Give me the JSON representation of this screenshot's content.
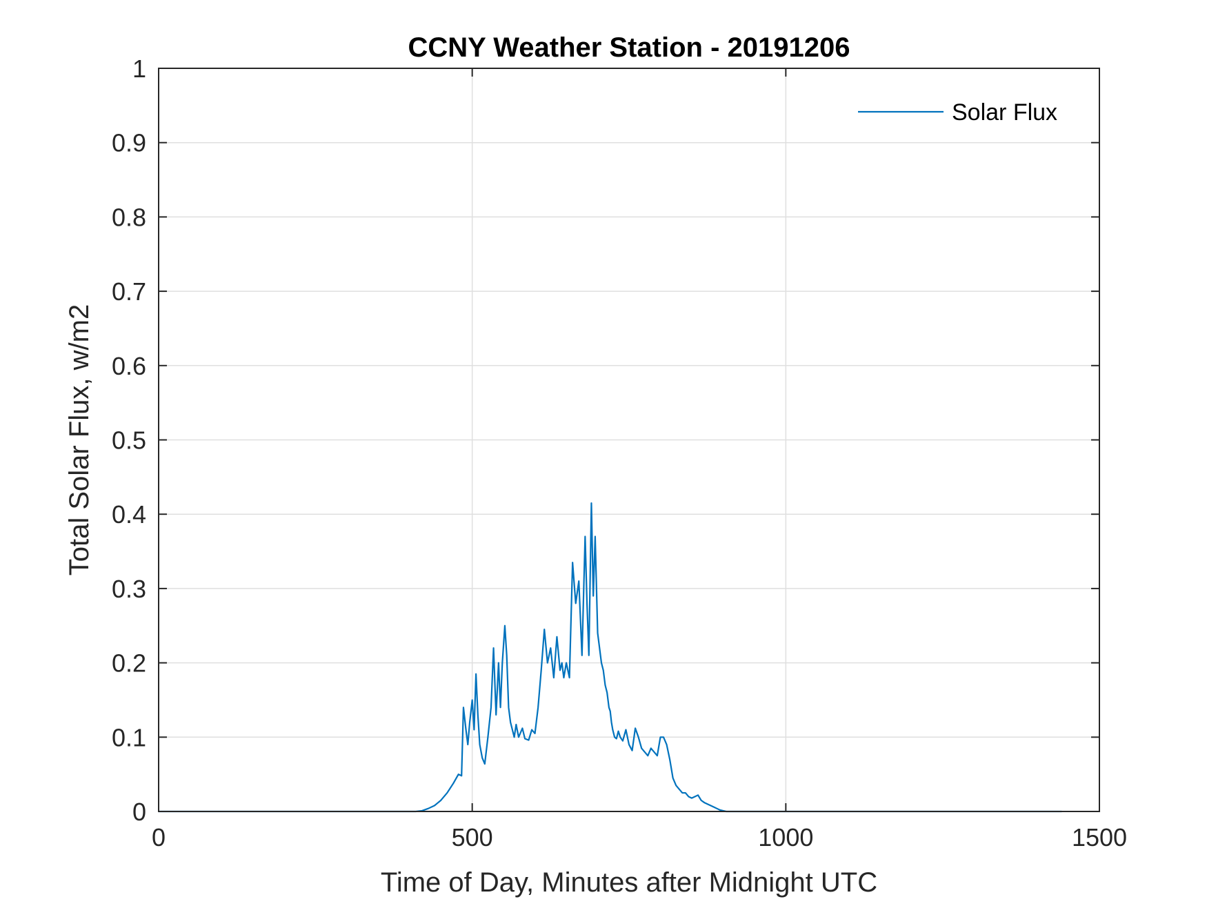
{
  "chart_data": {
    "type": "line",
    "title": "CCNY Weather Station - 20191206",
    "xlabel": "Time of Day, Minutes after Midnight UTC",
    "ylabel": "Total Solar Flux, w/m2",
    "xlim": [
      0,
      1500
    ],
    "ylim": [
      0,
      1
    ],
    "xticks": [
      0,
      500,
      1000,
      1500
    ],
    "xtick_labels": [
      "0",
      "500",
      "1000",
      "1500"
    ],
    "yticks": [
      0,
      0.1,
      0.2,
      0.3,
      0.4,
      0.5,
      0.6,
      0.7,
      0.8,
      0.9,
      1
    ],
    "ytick_labels": [
      "0",
      "0.1",
      "0.2",
      "0.3",
      "0.4",
      "0.5",
      "0.6",
      "0.7",
      "0.8",
      "0.9",
      "1"
    ],
    "grid": true,
    "legend": {
      "position": "top-right",
      "entries": [
        "Solar Flux"
      ]
    },
    "series": [
      {
        "name": "Solar Flux",
        "color": "#0072bd",
        "x": [
          0,
          410,
          420,
          430,
          440,
          450,
          460,
          470,
          478,
          483,
          486,
          490,
          493,
          496,
          500,
          503,
          506,
          509,
          512,
          516,
          520,
          525,
          530,
          534,
          538,
          542,
          545,
          548,
          552,
          555,
          558,
          561,
          564,
          567,
          570,
          574,
          580,
          584,
          590,
          595,
          600,
          605,
          610,
          615,
          620,
          625,
          630,
          635,
          640,
          643,
          646,
          650,
          655,
          660,
          665,
          670,
          675,
          680,
          683,
          686,
          690,
          693,
          696,
          700,
          703,
          706,
          709,
          712,
          715,
          718,
          720,
          722,
          724,
          727,
          730,
          733,
          736,
          740,
          745,
          750,
          755,
          760,
          765,
          770,
          775,
          780,
          785,
          790,
          795,
          800,
          805,
          810,
          815,
          820,
          825,
          830,
          835,
          840,
          845,
          850,
          855,
          860,
          865,
          870,
          875,
          880,
          885,
          890,
          895,
          900,
          905,
          910,
          915,
          920,
          925,
          930,
          935,
          940,
          945,
          950,
          960,
          970,
          980,
          990,
          1000,
          1440
        ],
        "values": [
          0,
          0,
          0.001,
          0.004,
          0.008,
          0.015,
          0.025,
          0.038,
          0.05,
          0.048,
          0.14,
          0.11,
          0.09,
          0.12,
          0.15,
          0.11,
          0.185,
          0.13,
          0.09,
          0.072,
          0.064,
          0.1,
          0.14,
          0.22,
          0.13,
          0.2,
          0.14,
          0.2,
          0.25,
          0.21,
          0.14,
          0.12,
          0.11,
          0.1,
          0.117,
          0.1,
          0.112,
          0.098,
          0.096,
          0.11,
          0.105,
          0.14,
          0.19,
          0.245,
          0.2,
          0.22,
          0.18,
          0.235,
          0.19,
          0.2,
          0.18,
          0.2,
          0.18,
          0.335,
          0.28,
          0.31,
          0.21,
          0.37,
          0.28,
          0.21,
          0.415,
          0.29,
          0.37,
          0.24,
          0.22,
          0.2,
          0.19,
          0.17,
          0.16,
          0.14,
          0.135,
          0.12,
          0.11,
          0.1,
          0.098,
          0.108,
          0.1,
          0.095,
          0.11,
          0.09,
          0.082,
          0.112,
          0.1,
          0.085,
          0.08,
          0.075,
          0.085,
          0.08,
          0.075,
          0.1,
          0.1,
          0.09,
          0.07,
          0.045,
          0.035,
          0.03,
          0.025,
          0.025,
          0.02,
          0.018,
          0.02,
          0.022,
          0.015,
          0.012,
          0.01,
          0.008,
          0.006,
          0.004,
          0.002,
          0.001,
          0,
          0,
          0,
          0,
          0,
          0,
          0,
          0,
          0,
          0,
          0,
          0,
          0,
          0,
          0,
          0
        ]
      }
    ]
  }
}
